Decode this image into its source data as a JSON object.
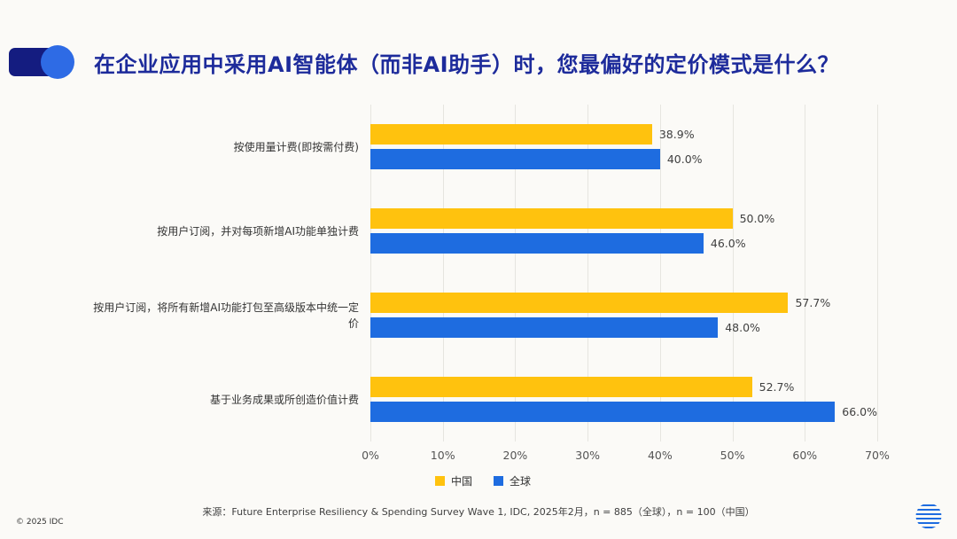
{
  "header": {
    "title": "在企业应用中采用AI智能体（而非AI助手）时，您最偏好的定价模式是什么？"
  },
  "colors": {
    "china_series": "#FFC20E",
    "global_series": "#1E6CE0",
    "title_text": "#1D2B9B",
    "decor_bar": "#141C80",
    "decor_circle": "#2E6BE5",
    "background": "#FBFAF7"
  },
  "chart_data": {
    "type": "bar",
    "orientation": "horizontal",
    "title": "在企业应用中采用AI智能体（而非AI助手）时，您最偏好的定价模式是什么？",
    "categories": [
      "按使用量计费(即按需付费)",
      "按用户订阅，并对每项新增AI功能单独计费",
      "按用户订阅，将所有新增AI功能打包至高级版本中统一定价",
      "基于业务成果或所创造价值计费"
    ],
    "series": [
      {
        "name": "中国",
        "key": "china",
        "color": "#FFC20E",
        "values": [
          38.9,
          50.0,
          57.7,
          52.7
        ]
      },
      {
        "name": "全球",
        "key": "global",
        "color": "#1E6CE0",
        "values": [
          40.0,
          46.0,
          48.0,
          66.0
        ]
      }
    ],
    "xlim": [
      0,
      70
    ],
    "x_ticks": [
      "0%",
      "10%",
      "20%",
      "30%",
      "40%",
      "50%",
      "60%",
      "70%"
    ],
    "grid": true,
    "legend_position": "bottom"
  },
  "footer": {
    "source": "来源：Future Enterprise Resiliency & Spending Survey Wave 1, IDC, 2025年2月，n = 885（全球），n = 100（中国）",
    "copyright": "© 2025 IDC"
  }
}
